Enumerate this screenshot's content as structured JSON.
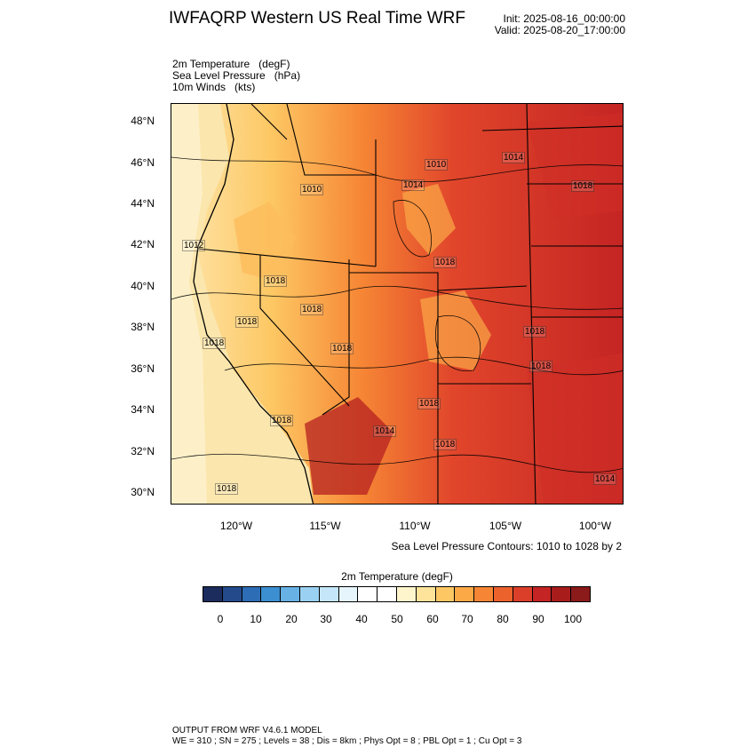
{
  "header": {
    "title": "IWFAQRP Western US Real Time WRF",
    "init": "Init: 2025-08-16_00:00:00",
    "valid": "Valid: 2025-08-20_17:00:00"
  },
  "fields": [
    "2m Temperature   (degF)",
    "Sea Level Pressure   (hPa)",
    "10m Winds   (kts)"
  ],
  "map": {
    "lat_labels": [
      "48°N",
      "46°N",
      "44°N",
      "42°N",
      "40°N",
      "38°N",
      "36°N",
      "34°N",
      "32°N",
      "30°N"
    ],
    "lon_labels": [
      "120°W",
      "115°W",
      "110°W",
      "105°W",
      "100°W"
    ],
    "pressure_labels": [
      "1010",
      "1014",
      "1014",
      "1018",
      "1010",
      "1012",
      "1018",
      "1018",
      "1018",
      "1018",
      "1018",
      "1018",
      "1018",
      "1018",
      "1018",
      "1018",
      "1014",
      "1018",
      "1018",
      "1014"
    ],
    "contour_note": "Sea Level Pressure Contours: 1010 to 1028 by 2"
  },
  "colorbar": {
    "title": "2m Temperature   (degF)",
    "colors": [
      "#1c2c5c",
      "#244a8c",
      "#2d6db5",
      "#3c8fd0",
      "#67b1e4",
      "#9ad1f2",
      "#c4e6f8",
      "#e6f5fc",
      "#ffffff",
      "#ffffff",
      "#fff5cc",
      "#fee39b",
      "#fdc864",
      "#fba947",
      "#f68635",
      "#ec622d",
      "#db3f2a",
      "#c42423",
      "#a81c1c",
      "#8b1a1a"
    ],
    "labels": [
      "0",
      "10",
      "20",
      "30",
      "40",
      "50",
      "60",
      "70",
      "80",
      "90",
      "100"
    ]
  },
  "footer": {
    "line1": "OUTPUT FROM WRF V4.6.1 MODEL",
    "line2": "WE = 310 ; SN = 275 ; Levels = 38 ; Dis = 8km ; Phys Opt = 8 ; PBL Opt = 1 ; Cu Opt = 3"
  }
}
